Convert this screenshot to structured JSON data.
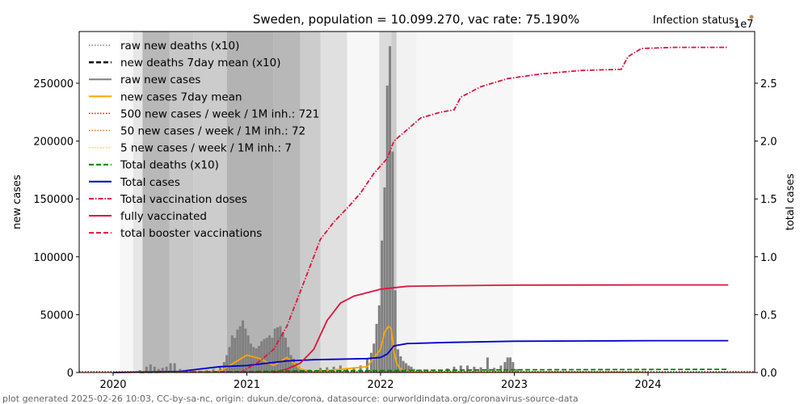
{
  "chart_data": {
    "type": "bar",
    "title": "Sweden, population = 10.099.270, vac rate: 75.190%",
    "status_label": "Infection status:",
    "status_color": "#cd853f",
    "xlabel": "",
    "ylabel": "new cases",
    "ylabel_right": "total cases",
    "right_axis_multiplier": "1e7",
    "xlim": [
      2019.75,
      2024.85
    ],
    "ylim": [
      0,
      295000
    ],
    "ylim_right": [
      0,
      2.95
    ],
    "x_ticks": [
      {
        "value": 2020,
        "label": "2020"
      },
      {
        "value": 2021,
        "label": "2021"
      },
      {
        "value": 2022,
        "label": "2022"
      },
      {
        "value": 2023,
        "label": "2023"
      },
      {
        "value": 2024,
        "label": "2024"
      }
    ],
    "y_ticks": [
      {
        "value": 0,
        "label": "0"
      },
      {
        "value": 50000,
        "label": "50000"
      },
      {
        "value": 100000,
        "label": "100000"
      },
      {
        "value": 150000,
        "label": "150000"
      },
      {
        "value": 200000,
        "label": "200000"
      },
      {
        "value": 250000,
        "label": "250000"
      }
    ],
    "y_ticks_right": [
      {
        "value": 0.0,
        "label": "0.0"
      },
      {
        "value": 0.5,
        "label": "0.5"
      },
      {
        "value": 1.0,
        "label": "1.0"
      },
      {
        "value": 1.5,
        "label": "1.5"
      },
      {
        "value": 2.0,
        "label": "2.0"
      },
      {
        "value": 2.5,
        "label": "2.5"
      }
    ],
    "grid": false,
    "legend_position": "top-left",
    "legend": [
      {
        "label": "raw new deaths (x10)",
        "color": "#808080",
        "style": "dotted"
      },
      {
        "label": "new deaths 7day mean (x10)",
        "color": "#000000",
        "style": "dashed"
      },
      {
        "label": "raw new cases",
        "color": "#808080",
        "style": "solid"
      },
      {
        "label": "new cases 7day mean",
        "color": "#ffa500",
        "style": "solid"
      },
      {
        "label": "500 new cases / week / 1M inh.: 721",
        "color": "#ff0000",
        "style": "dotted"
      },
      {
        "label": "50 new cases / week / 1M inh.: 72",
        "color": "#d2691e",
        "style": "dotted"
      },
      {
        "label": "5 new cases / week / 1M inh.: 7",
        "color": "#ffd700",
        "style": "dotted"
      },
      {
        "label": "Total deaths (x10)",
        "color": "#008000",
        "style": "dashed"
      },
      {
        "label": "Total cases",
        "color": "#0000cd",
        "style": "solid"
      },
      {
        "label": "Total vaccination doses",
        "color": "#dc143c",
        "style": "dashdot"
      },
      {
        "label": "fully vaccinated",
        "color": "#dc143c",
        "style": "solid"
      },
      {
        "label": "total booster vaccinations",
        "color": "#dc143c",
        "style": "dashed"
      }
    ],
    "background_bands": [
      {
        "from": 2020.05,
        "to": 2020.15,
        "shade": 0.97
      },
      {
        "from": 2020.15,
        "to": 2020.22,
        "shade": 0.9
      },
      {
        "from": 2020.22,
        "to": 2020.42,
        "shade": 0.72
      },
      {
        "from": 2020.42,
        "to": 2020.6,
        "shade": 0.78
      },
      {
        "from": 2020.6,
        "to": 2020.85,
        "shade": 0.8
      },
      {
        "from": 2020.85,
        "to": 2021.2,
        "shade": 0.7
      },
      {
        "from": 2021.2,
        "to": 2021.4,
        "shade": 0.72
      },
      {
        "from": 2021.4,
        "to": 2021.55,
        "shade": 0.8
      },
      {
        "from": 2021.55,
        "to": 2021.75,
        "shade": 0.88
      },
      {
        "from": 2021.75,
        "to": 2021.99,
        "shade": 0.97
      },
      {
        "from": 2021.99,
        "to": 2022.08,
        "shade": 0.86
      },
      {
        "from": 2022.08,
        "to": 2022.12,
        "shade": 0.8
      },
      {
        "from": 2022.12,
        "to": 2022.27,
        "shade": 0.95
      },
      {
        "from": 2022.27,
        "to": 2022.99,
        "shade": 0.97
      }
    ],
    "series": [
      {
        "name": "raw new cases",
        "type": "bar",
        "color": "#808080",
        "x": [
          2020.2,
          2020.25,
          2020.28,
          2020.31,
          2020.34,
          2020.37,
          2020.4,
          2020.43,
          2020.46,
          2020.5,
          2020.55,
          2020.6,
          2020.7,
          2020.75,
          2020.8,
          2020.83,
          2020.85,
          2020.87,
          2020.89,
          2020.91,
          2020.93,
          2020.95,
          2020.97,
          2020.99,
          2021.01,
          2021.03,
          2021.05,
          2021.07,
          2021.09,
          2021.11,
          2021.13,
          2021.15,
          2021.17,
          2021.19,
          2021.21,
          2021.23,
          2021.25,
          2021.27,
          2021.29,
          2021.31,
          2021.33,
          2021.35,
          2021.37,
          2021.39,
          2021.41,
          2021.43,
          2021.47,
          2021.55,
          2021.6,
          2021.65,
          2021.7,
          2021.75,
          2021.8,
          2021.85,
          2021.9,
          2021.93,
          2021.95,
          2021.97,
          2021.99,
          2022.01,
          2022.03,
          2022.05,
          2022.07,
          2022.09,
          2022.11,
          2022.13,
          2022.15,
          2022.17,
          2022.19,
          2022.21,
          2022.23,
          2022.25,
          2022.3,
          2022.35,
          2022.4,
          2022.45,
          2022.5,
          2022.55,
          2022.6,
          2022.65,
          2022.7,
          2022.75,
          2022.8,
          2022.85,
          2022.9,
          2022.93,
          2022.95,
          2022.97,
          2022.99,
          2023.02,
          2023.1,
          2023.3,
          2023.5,
          2023.7,
          2023.9,
          2024.1
        ],
        "values": [
          2000,
          5000,
          7000,
          5000,
          3000,
          4000,
          5000,
          8000,
          8000,
          3000,
          2000,
          1500,
          2000,
          3000,
          5000,
          9000,
          15000,
          22000,
          32000,
          30000,
          37000,
          40000,
          45000,
          38000,
          32000,
          25000,
          22000,
          21000,
          23000,
          27000,
          29000,
          30000,
          32000,
          30000,
          38000,
          39000,
          40000,
          35000,
          30000,
          22000,
          15000,
          12000,
          8000,
          5000,
          3000,
          2000,
          2500,
          4000,
          4500,
          5000,
          6000,
          4000,
          4500,
          6000,
          12000,
          17000,
          25000,
          42000,
          58000,
          114000,
          160000,
          248000,
          282000,
          191000,
          71000,
          20000,
          14000,
          10000,
          8000,
          6000,
          5000,
          3000,
          2500,
          2000,
          1500,
          2000,
          3500,
          5000,
          6000,
          6000,
          5000,
          4500,
          13000,
          4000,
          6000,
          9000,
          13000,
          13000,
          9000,
          3000,
          1000,
          800,
          600,
          1000,
          800,
          500
        ]
      },
      {
        "name": "new cases 7day mean",
        "type": "line",
        "color": "#ffa500",
        "x": [
          2020.0,
          2020.8,
          2020.9,
          2021.0,
          2021.1,
          2021.2,
          2021.3,
          2021.4,
          2021.5,
          2021.9,
          2022.0,
          2022.03,
          2022.06,
          2022.08,
          2022.1,
          2022.12,
          2022.15,
          2022.2,
          2022.3,
          2024.0
        ],
        "values": [
          0,
          1000,
          8000,
          15000,
          12000,
          6000,
          13000,
          3000,
          500,
          5000,
          20000,
          35000,
          40000,
          38000,
          18000,
          8000,
          3000,
          1000,
          500,
          300
        ]
      },
      {
        "name": "Total cases",
        "type": "line",
        "axis": "right",
        "color": "#0000cd",
        "x": [
          2020.0,
          2020.5,
          2020.8,
          2021.0,
          2021.3,
          2021.5,
          2021.9,
          2022.0,
          2022.05,
          2022.1,
          2022.2,
          2022.5,
          2023.0,
          2023.5,
          2024.0,
          2024.6
        ],
        "values": [
          0,
          0.01,
          0.05,
          0.06,
          0.1,
          0.11,
          0.12,
          0.13,
          0.16,
          0.23,
          0.25,
          0.26,
          0.27,
          0.272,
          0.275,
          0.275
        ]
      },
      {
        "name": "Total vaccination doses",
        "type": "line",
        "axis": "right",
        "color": "#dc143c",
        "x": [
          2020.95,
          2021.1,
          2021.2,
          2021.3,
          2021.4,
          2021.5,
          2021.55,
          2021.65,
          2021.75,
          2021.85,
          2021.95,
          2022.05,
          2022.1,
          2022.2,
          2022.3,
          2022.45,
          2022.55,
          2022.6,
          2022.75,
          2022.95,
          2023.2,
          2023.5,
          2023.8,
          2023.85,
          2023.95,
          2024.2,
          2024.6
        ],
        "values": [
          0,
          0.1,
          0.2,
          0.4,
          0.7,
          1.0,
          1.15,
          1.3,
          1.42,
          1.55,
          1.72,
          1.85,
          2.0,
          2.1,
          2.2,
          2.25,
          2.27,
          2.38,
          2.47,
          2.54,
          2.58,
          2.61,
          2.62,
          2.73,
          2.8,
          2.81,
          2.81
        ]
      },
      {
        "name": "fully vaccinated",
        "type": "line",
        "axis": "right",
        "color": "#dc143c",
        "x": [
          2021.2,
          2021.3,
          2021.4,
          2021.5,
          2021.6,
          2021.7,
          2021.8,
          2021.9,
          2022.0,
          2022.2,
          2022.5,
          2023.0,
          2024.0,
          2024.6
        ],
        "values": [
          0,
          0.03,
          0.08,
          0.2,
          0.45,
          0.6,
          0.66,
          0.69,
          0.72,
          0.745,
          0.75,
          0.755,
          0.757,
          0.757
        ]
      },
      {
        "name": "Total deaths (x10)",
        "type": "line",
        "axis": "right",
        "color": "#008000",
        "x": [
          2020.2,
          2020.6,
          2021.0,
          2021.3,
          2022.0,
          2022.5,
          2023.0,
          2024.0,
          2024.6
        ],
        "values": [
          0,
          0.005,
          0.008,
          0.014,
          0.016,
          0.02,
          0.023,
          0.026,
          0.027
        ]
      },
      {
        "name": "500 new cases / week / 1M inh.",
        "type": "hline",
        "color": "#ff0000",
        "value": 721
      }
    ]
  },
  "footer": "plot generated 2025-02-26 10:03, CC-by-sa-nc, origin: dukun.de/corona, datasource: ourworldindata.org/coronavirus-source-data"
}
